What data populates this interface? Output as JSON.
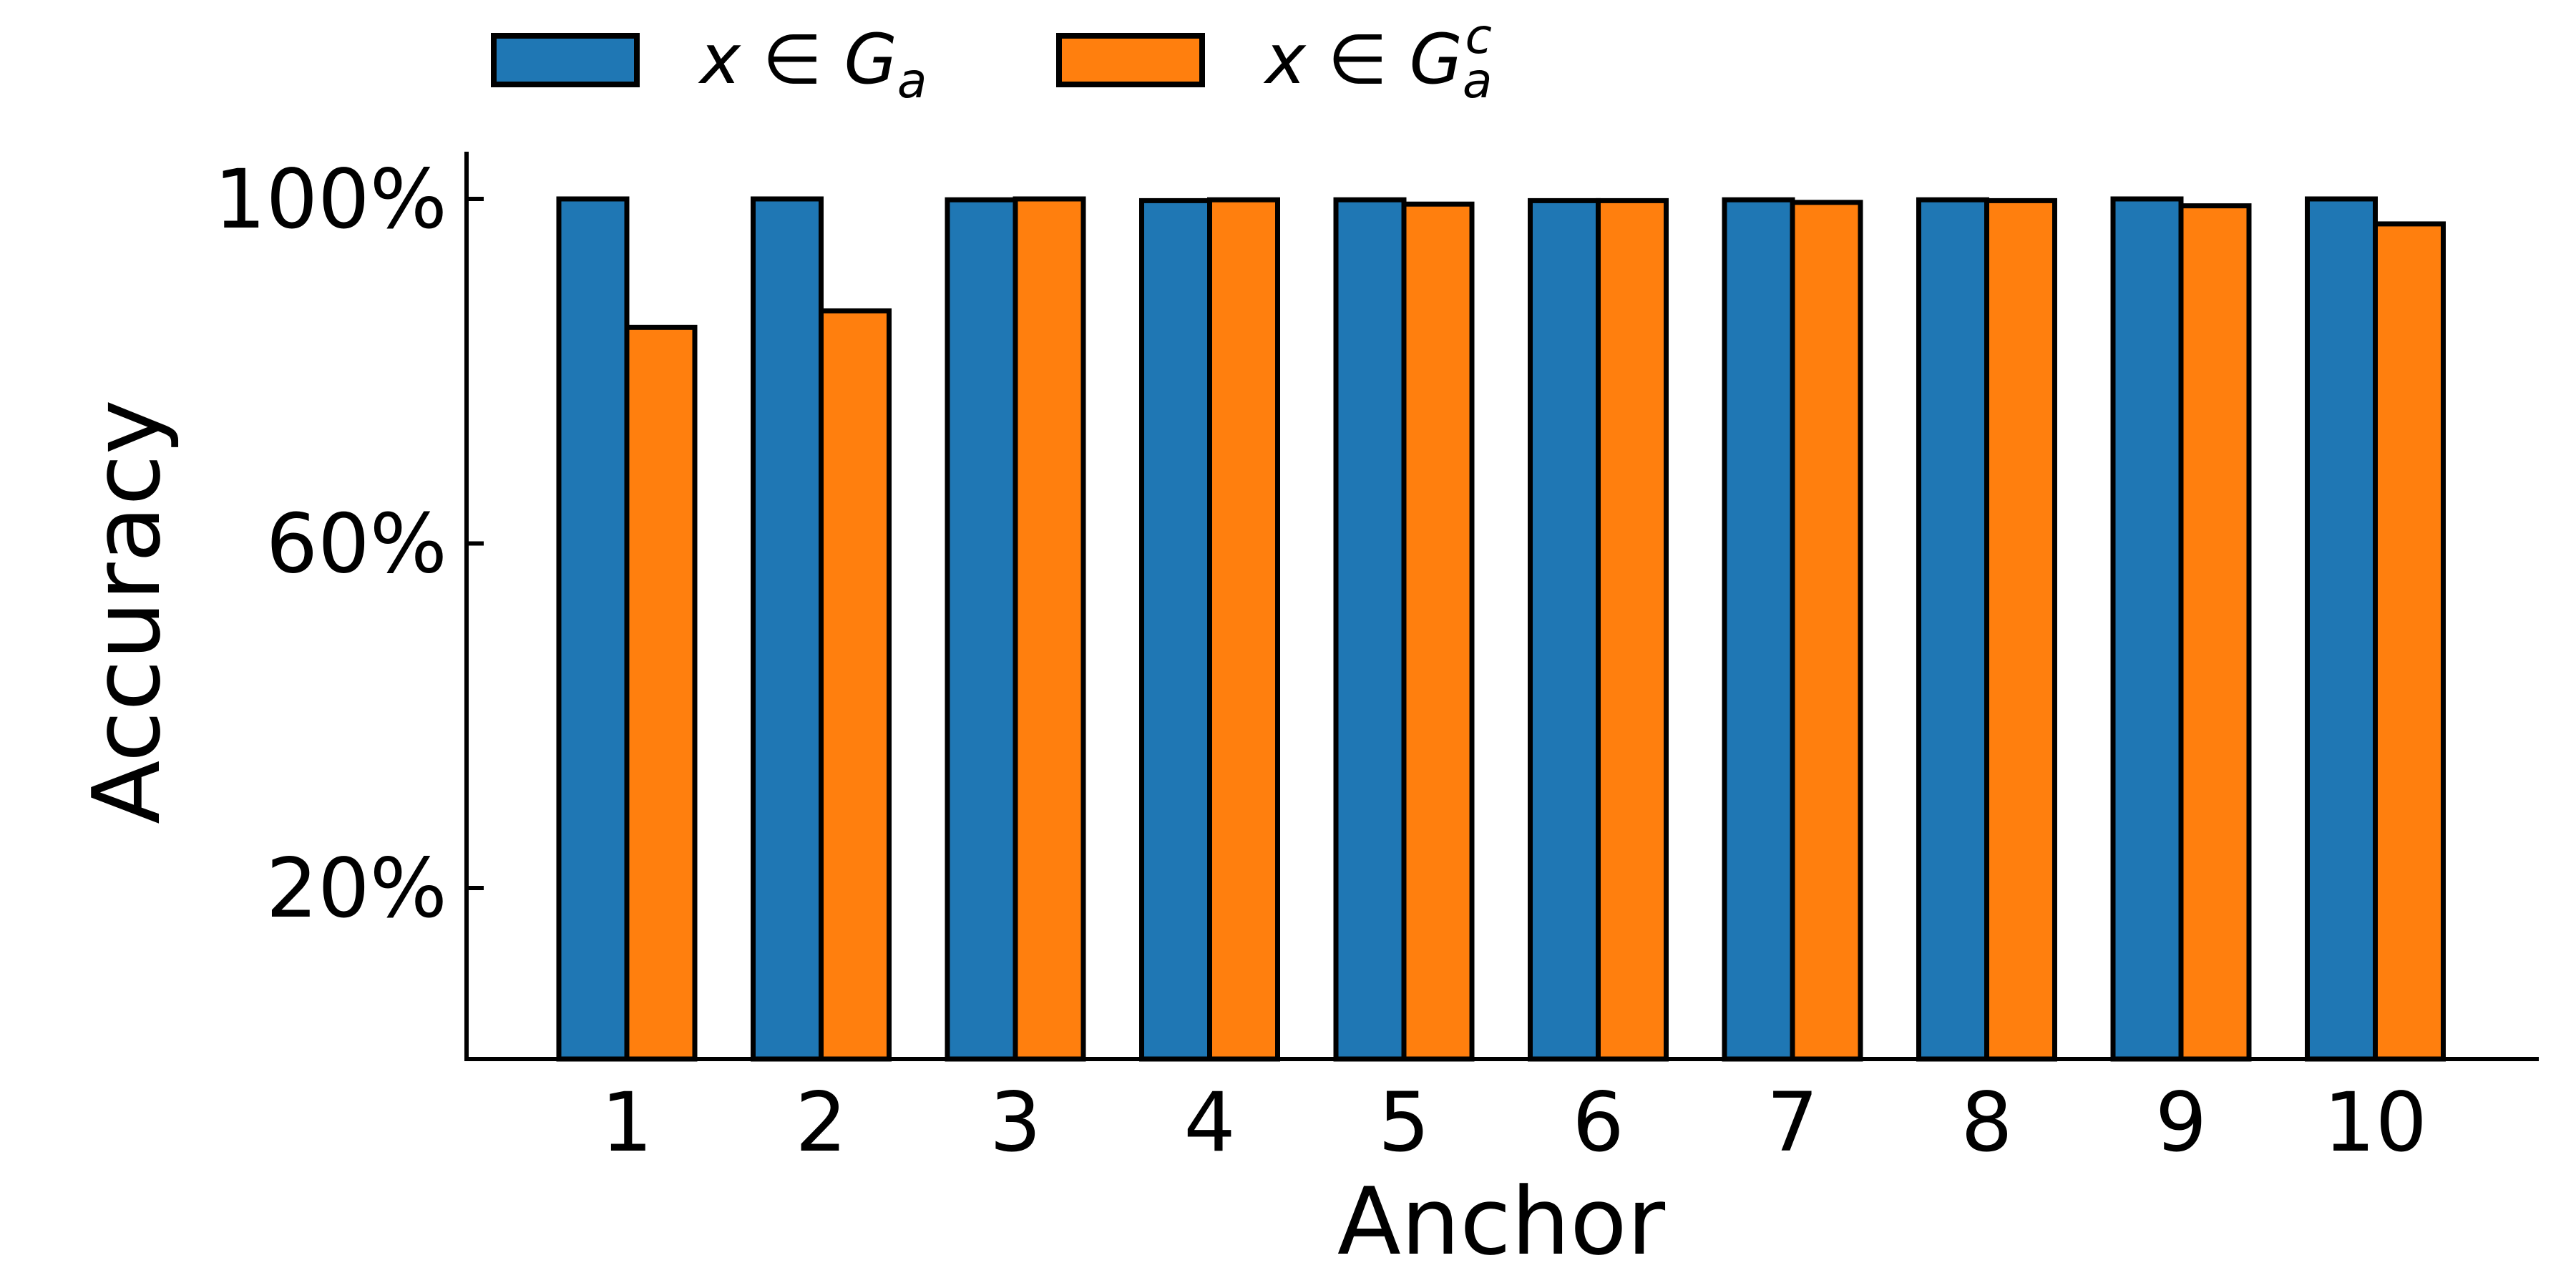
{
  "chart_data": {
    "type": "bar",
    "xlabel": "Anchor",
    "ylabel": "Accuracy",
    "categories": [
      "1",
      "2",
      "3",
      "4",
      "5",
      "6",
      "7",
      "8",
      "9",
      "10"
    ],
    "series": [
      {
        "name": "x ∈ G_a",
        "color": "#1f77b4",
        "values": [
          100.0,
          100.0,
          99.9,
          99.8,
          99.9,
          99.8,
          99.9,
          99.9,
          100.0,
          100.0
        ]
      },
      {
        "name": "x ∈ G_a^c",
        "color": "#ff7f0e",
        "values": [
          85.1,
          87.0,
          100.0,
          99.9,
          99.4,
          99.8,
          99.6,
          99.8,
          99.2,
          97.1
        ]
      }
    ],
    "ylim": [
      0,
      105
    ],
    "yticks": [
      20,
      60,
      100
    ],
    "ytick_labels": [
      "20%",
      "60%",
      "100%"
    ],
    "grid": false,
    "legend_position": "top-left, above plot",
    "bar_edge_color": "#000000"
  }
}
